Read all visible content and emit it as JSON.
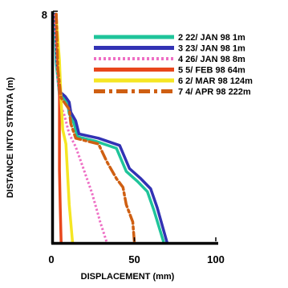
{
  "chart_data": {
    "type": "line",
    "xlabel": "DISPLACEMENT  (mm)",
    "ylabel": "DISTANCE INTO STRATA  (m)",
    "xlim": [
      0,
      100
    ],
    "ylim": [
      0,
      8
    ],
    "x_ticks": [
      "0",
      "50",
      "100"
    ],
    "y_ticks": [
      "8"
    ],
    "grid": false,
    "legend_position": "top-right",
    "series": [
      {
        "name": "2 22/  JAN  98  1m",
        "color": "#1fc49a",
        "dash": "solid",
        "points": [
          [
            1,
            7.9
          ],
          [
            2,
            6.2
          ],
          [
            4,
            5.1
          ],
          [
            7,
            4.95
          ],
          [
            9,
            4.8
          ],
          [
            10,
            4.45
          ],
          [
            13,
            4.1
          ],
          [
            15,
            3.65
          ],
          [
            26,
            3.5
          ],
          [
            39,
            3.25
          ],
          [
            42,
            2.85
          ],
          [
            45,
            2.45
          ],
          [
            52,
            2.1
          ],
          [
            58,
            1.75
          ],
          [
            62,
            1.1
          ],
          [
            68,
            0
          ]
        ]
      },
      {
        "name": "3 23/  JAN  98  1m",
        "color": "#3232b4",
        "dash": "solid",
        "points": [
          [
            1.5,
            7.9
          ],
          [
            2.5,
            6.3
          ],
          [
            4.5,
            5.2
          ],
          [
            7.5,
            5.05
          ],
          [
            10,
            4.85
          ],
          [
            11,
            4.5
          ],
          [
            14,
            4.2
          ],
          [
            16,
            3.75
          ],
          [
            28,
            3.6
          ],
          [
            41,
            3.35
          ],
          [
            44,
            2.95
          ],
          [
            47,
            2.55
          ],
          [
            54,
            2.2
          ],
          [
            60,
            1.85
          ],
          [
            64,
            1.2
          ],
          [
            70,
            0
          ]
        ]
      },
      {
        "name": "4 26/  JAN  98  8m",
        "color": "#ee6ec4",
        "dash": "dotted",
        "points": [
          [
            1,
            7.9
          ],
          [
            3,
            5.6
          ],
          [
            5,
            4.7
          ],
          [
            7,
            4.4
          ],
          [
            10,
            3.75
          ],
          [
            14,
            3.3
          ],
          [
            19,
            2.5
          ],
          [
            24,
            1.7
          ],
          [
            29,
            0.7
          ],
          [
            33,
            0
          ]
        ]
      },
      {
        "name": "5  5/  FEB  98  64m",
        "color": "#e8471c",
        "dash": "solid",
        "points": [
          [
            2,
            7.9
          ],
          [
            3,
            6.5
          ],
          [
            4,
            5.2
          ],
          [
            4,
            2.5
          ],
          [
            4.5,
            1.2
          ],
          [
            5,
            0
          ]
        ]
      },
      {
        "name": "6  2/  MAR  98  124m",
        "color": "#f5e623",
        "dash": "solid",
        "points": [
          [
            2,
            7.8
          ],
          [
            4,
            6.3
          ],
          [
            5,
            4.9
          ],
          [
            6,
            3.9
          ],
          [
            8,
            3.4
          ],
          [
            10,
            1.3
          ],
          [
            12,
            0
          ]
        ]
      },
      {
        "name": "7  4/  APR  98  222m",
        "color": "#cf5f12",
        "dash": "dashdot",
        "points": [
          [
            2,
            7.9
          ],
          [
            3,
            6.0
          ],
          [
            5,
            5.0
          ],
          [
            10,
            4.6
          ],
          [
            11,
            4.1
          ],
          [
            14,
            3.6
          ],
          [
            28,
            3.4
          ],
          [
            33,
            2.8
          ],
          [
            39,
            2.2
          ],
          [
            43,
            1.9
          ],
          [
            45,
            1.3
          ],
          [
            49,
            0.7
          ],
          [
            50,
            0
          ]
        ]
      }
    ]
  }
}
